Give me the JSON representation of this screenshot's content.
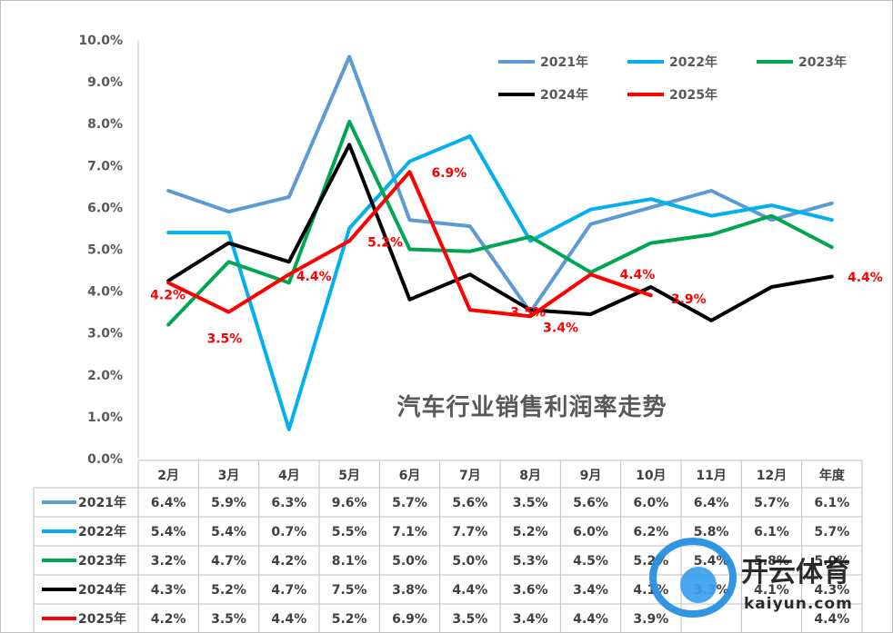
{
  "chart_data": {
    "type": "line",
    "title": "汽车行业销售利润率走势",
    "categories": [
      "2月",
      "3月",
      "4月",
      "5月",
      "6月",
      "7月",
      "8月",
      "9月",
      "10月",
      "11月",
      "12月",
      "年度"
    ],
    "y_ticks": [
      "0.0%",
      "1.0%",
      "2.0%",
      "3.0%",
      "4.0%",
      "5.0%",
      "6.0%",
      "7.0%",
      "8.0%",
      "9.0%",
      "10.0%"
    ],
    "ylim": [
      0,
      10
    ],
    "grid": false,
    "legend_position": "top-right",
    "series": [
      {
        "name": "2021年",
        "color": "#5b9bd5",
        "values": [
          6.4,
          5.9,
          6.25,
          9.6,
          5.7,
          5.55,
          3.5,
          5.6,
          6.0,
          6.4,
          5.7,
          6.1
        ],
        "table": [
          "6.4%",
          "5.9%",
          "6.3%",
          "9.6%",
          "5.7%",
          "5.6%",
          "3.5%",
          "5.6%",
          "6.0%",
          "6.4%",
          "5.7%",
          "6.1%"
        ]
      },
      {
        "name": "2022年",
        "color": "#00b0f0",
        "values": [
          5.4,
          5.4,
          0.7,
          5.5,
          7.1,
          7.7,
          5.2,
          5.95,
          6.2,
          5.8,
          6.05,
          5.7
        ],
        "table": [
          "5.4%",
          "5.4%",
          "0.7%",
          "5.5%",
          "7.1%",
          "7.7%",
          "5.2%",
          "6.0%",
          "6.2%",
          "5.8%",
          "6.1%",
          "5.7%"
        ]
      },
      {
        "name": "2023年",
        "color": "#00a651",
        "values": [
          3.2,
          4.7,
          4.2,
          8.05,
          5.0,
          4.95,
          5.3,
          4.45,
          5.15,
          5.35,
          5.8,
          5.05
        ],
        "table": [
          "3.2%",
          "4.7%",
          "4.2%",
          "8.1%",
          "5.0%",
          "5.0%",
          "5.3%",
          "4.5%",
          "5.2%",
          "5.4%",
          "5.8%",
          "5.0%"
        ]
      },
      {
        "name": "2024年",
        "color": "#000000",
        "values": [
          4.25,
          5.15,
          4.7,
          7.5,
          3.8,
          4.4,
          3.55,
          3.45,
          4.1,
          3.3,
          4.1,
          4.35
        ],
        "table": [
          "4.3%",
          "5.2%",
          "4.7%",
          "7.5%",
          "3.8%",
          "4.4%",
          "3.6%",
          "3.4%",
          "4.1%",
          "3.3%",
          "4.1%",
          "4.3%"
        ]
      },
      {
        "name": "2025年",
        "color": "#ff0000",
        "values": [
          4.2,
          3.5,
          4.4,
          5.2,
          6.85,
          3.55,
          3.4,
          4.4,
          3.9,
          null,
          null,
          null
        ],
        "table": [
          "4.2%",
          "3.5%",
          "4.4%",
          "5.2%",
          "6.9%",
          "3.5%",
          "3.4%",
          "4.4%",
          "3.9%",
          "",
          "",
          "4.4%"
        ]
      }
    ],
    "annotations_2025": [
      "4.2%",
      "3.5%",
      "4.4%",
      "5.2%",
      "6.9%",
      "3.5%",
      "3.4%",
      "4.4%",
      "3.9%",
      "4.4%"
    ]
  },
  "watermark": {
    "cn": "开云体育",
    "en": "kaiyun.com"
  }
}
